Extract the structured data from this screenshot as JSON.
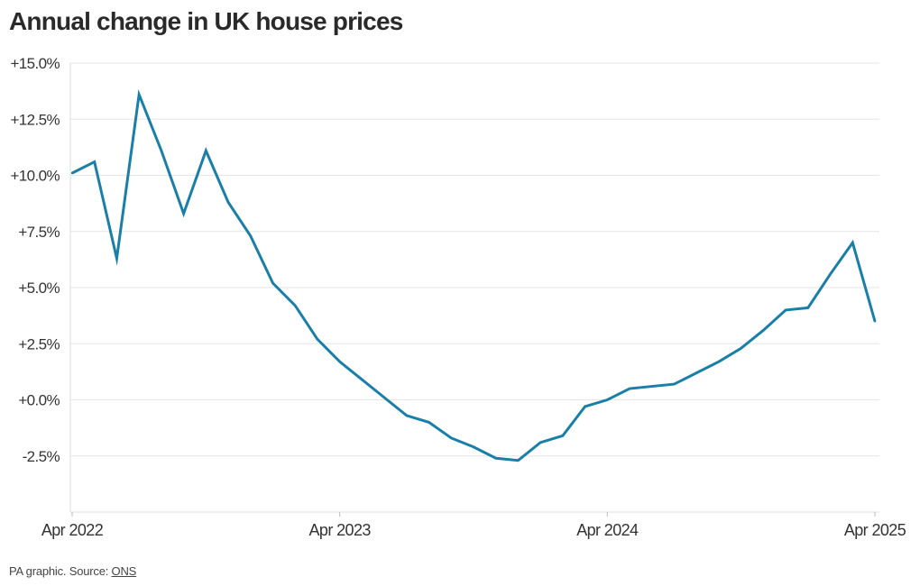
{
  "chart_data": {
    "type": "line",
    "title": "Annual change in UK house prices",
    "xlabel": "",
    "ylabel": "",
    "ylim": [
      -5,
      15
    ],
    "y_ticks": [
      -2.5,
      0,
      2.5,
      5,
      7.5,
      10,
      12.5,
      15
    ],
    "y_tick_labels": [
      "-2.5%",
      "+0.0%",
      "+2.5%",
      "+5.0%",
      "+7.5%",
      "+10.0%",
      "+12.5%",
      "+15.0%"
    ],
    "x_ticks": [
      "2022-04",
      "2023-04",
      "2024-04",
      "2025-04"
    ],
    "x_tick_labels": [
      "Apr 2022",
      "Apr 2023",
      "Apr 2024",
      "Apr 2025"
    ],
    "grid": true,
    "series": [
      {
        "color": "#1a7fa8",
        "x": [
          "2022-04",
          "2022-05",
          "2022-06",
          "2022-07",
          "2022-08",
          "2022-09",
          "2022-10",
          "2022-11",
          "2022-12",
          "2023-01",
          "2023-02",
          "2023-03",
          "2023-04",
          "2023-05",
          "2023-06",
          "2023-07",
          "2023-08",
          "2023-09",
          "2023-10",
          "2023-11",
          "2023-12",
          "2024-01",
          "2024-02",
          "2024-03",
          "2024-04",
          "2024-05",
          "2024-06",
          "2024-07",
          "2024-08",
          "2024-09",
          "2024-10",
          "2024-11",
          "2024-12",
          "2025-01",
          "2025-02",
          "2025-03",
          "2025-04"
        ],
        "values": [
          10.1,
          10.6,
          6.3,
          13.6,
          11.1,
          8.3,
          11.1,
          8.8,
          7.3,
          5.2,
          4.2,
          2.7,
          1.7,
          0.9,
          0.1,
          -0.7,
          -1.0,
          -1.7,
          -2.1,
          -2.6,
          -2.7,
          -1.9,
          -1.6,
          -0.3,
          0.0,
          0.5,
          0.6,
          0.7,
          1.2,
          1.7,
          2.3,
          3.1,
          4.0,
          4.1,
          5.6,
          7.0,
          3.5
        ]
      }
    ]
  },
  "footer": {
    "prefix": "PA graphic. Source: ",
    "source": "ONS"
  }
}
